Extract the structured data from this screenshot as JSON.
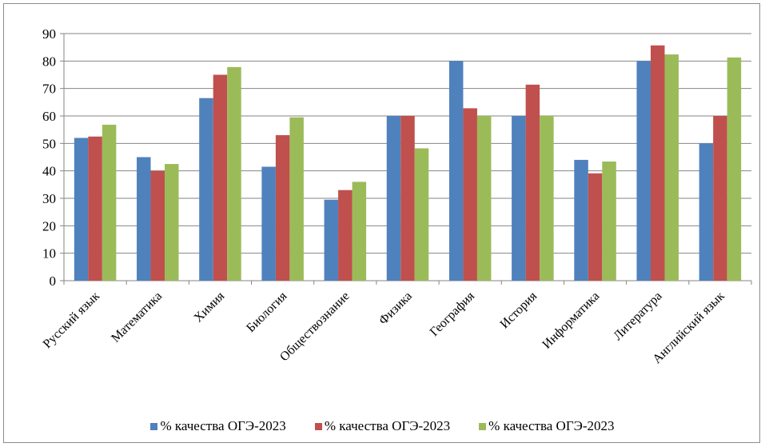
{
  "chart_data": {
    "type": "bar",
    "title": "",
    "xlabel": "",
    "ylabel": "",
    "ylim": [
      0,
      90
    ],
    "yticks": [
      0,
      10,
      20,
      30,
      40,
      50,
      60,
      70,
      80,
      90
    ],
    "grid": true,
    "legend_position": "bottom",
    "categories": [
      "Русский язык",
      "Математика",
      "Химия",
      "Биология",
      "Обществознание",
      "Физика",
      "География",
      "История",
      "Информатика",
      "Литература",
      "Английский язык"
    ],
    "series": [
      {
        "name": "% качества ОГЭ-2023",
        "color": "#4f81bd",
        "values": [
          52,
          45,
          66.5,
          41.5,
          29.5,
          60,
          80,
          60,
          44,
          80,
          50
        ]
      },
      {
        "name": "% качества ОГЭ-2023",
        "color": "#c0504d",
        "values": [
          52.5,
          40,
          75,
          53,
          33,
          60,
          62.8,
          71.4,
          39.1,
          85.7,
          60
        ]
      },
      {
        "name": "% качества ОГЭ-2023",
        "color": "#9bbb59",
        "values": [
          56.8,
          42.5,
          77.8,
          59.5,
          36,
          48.2,
          60,
          60,
          43.4,
          82.4,
          81.3
        ]
      }
    ]
  }
}
